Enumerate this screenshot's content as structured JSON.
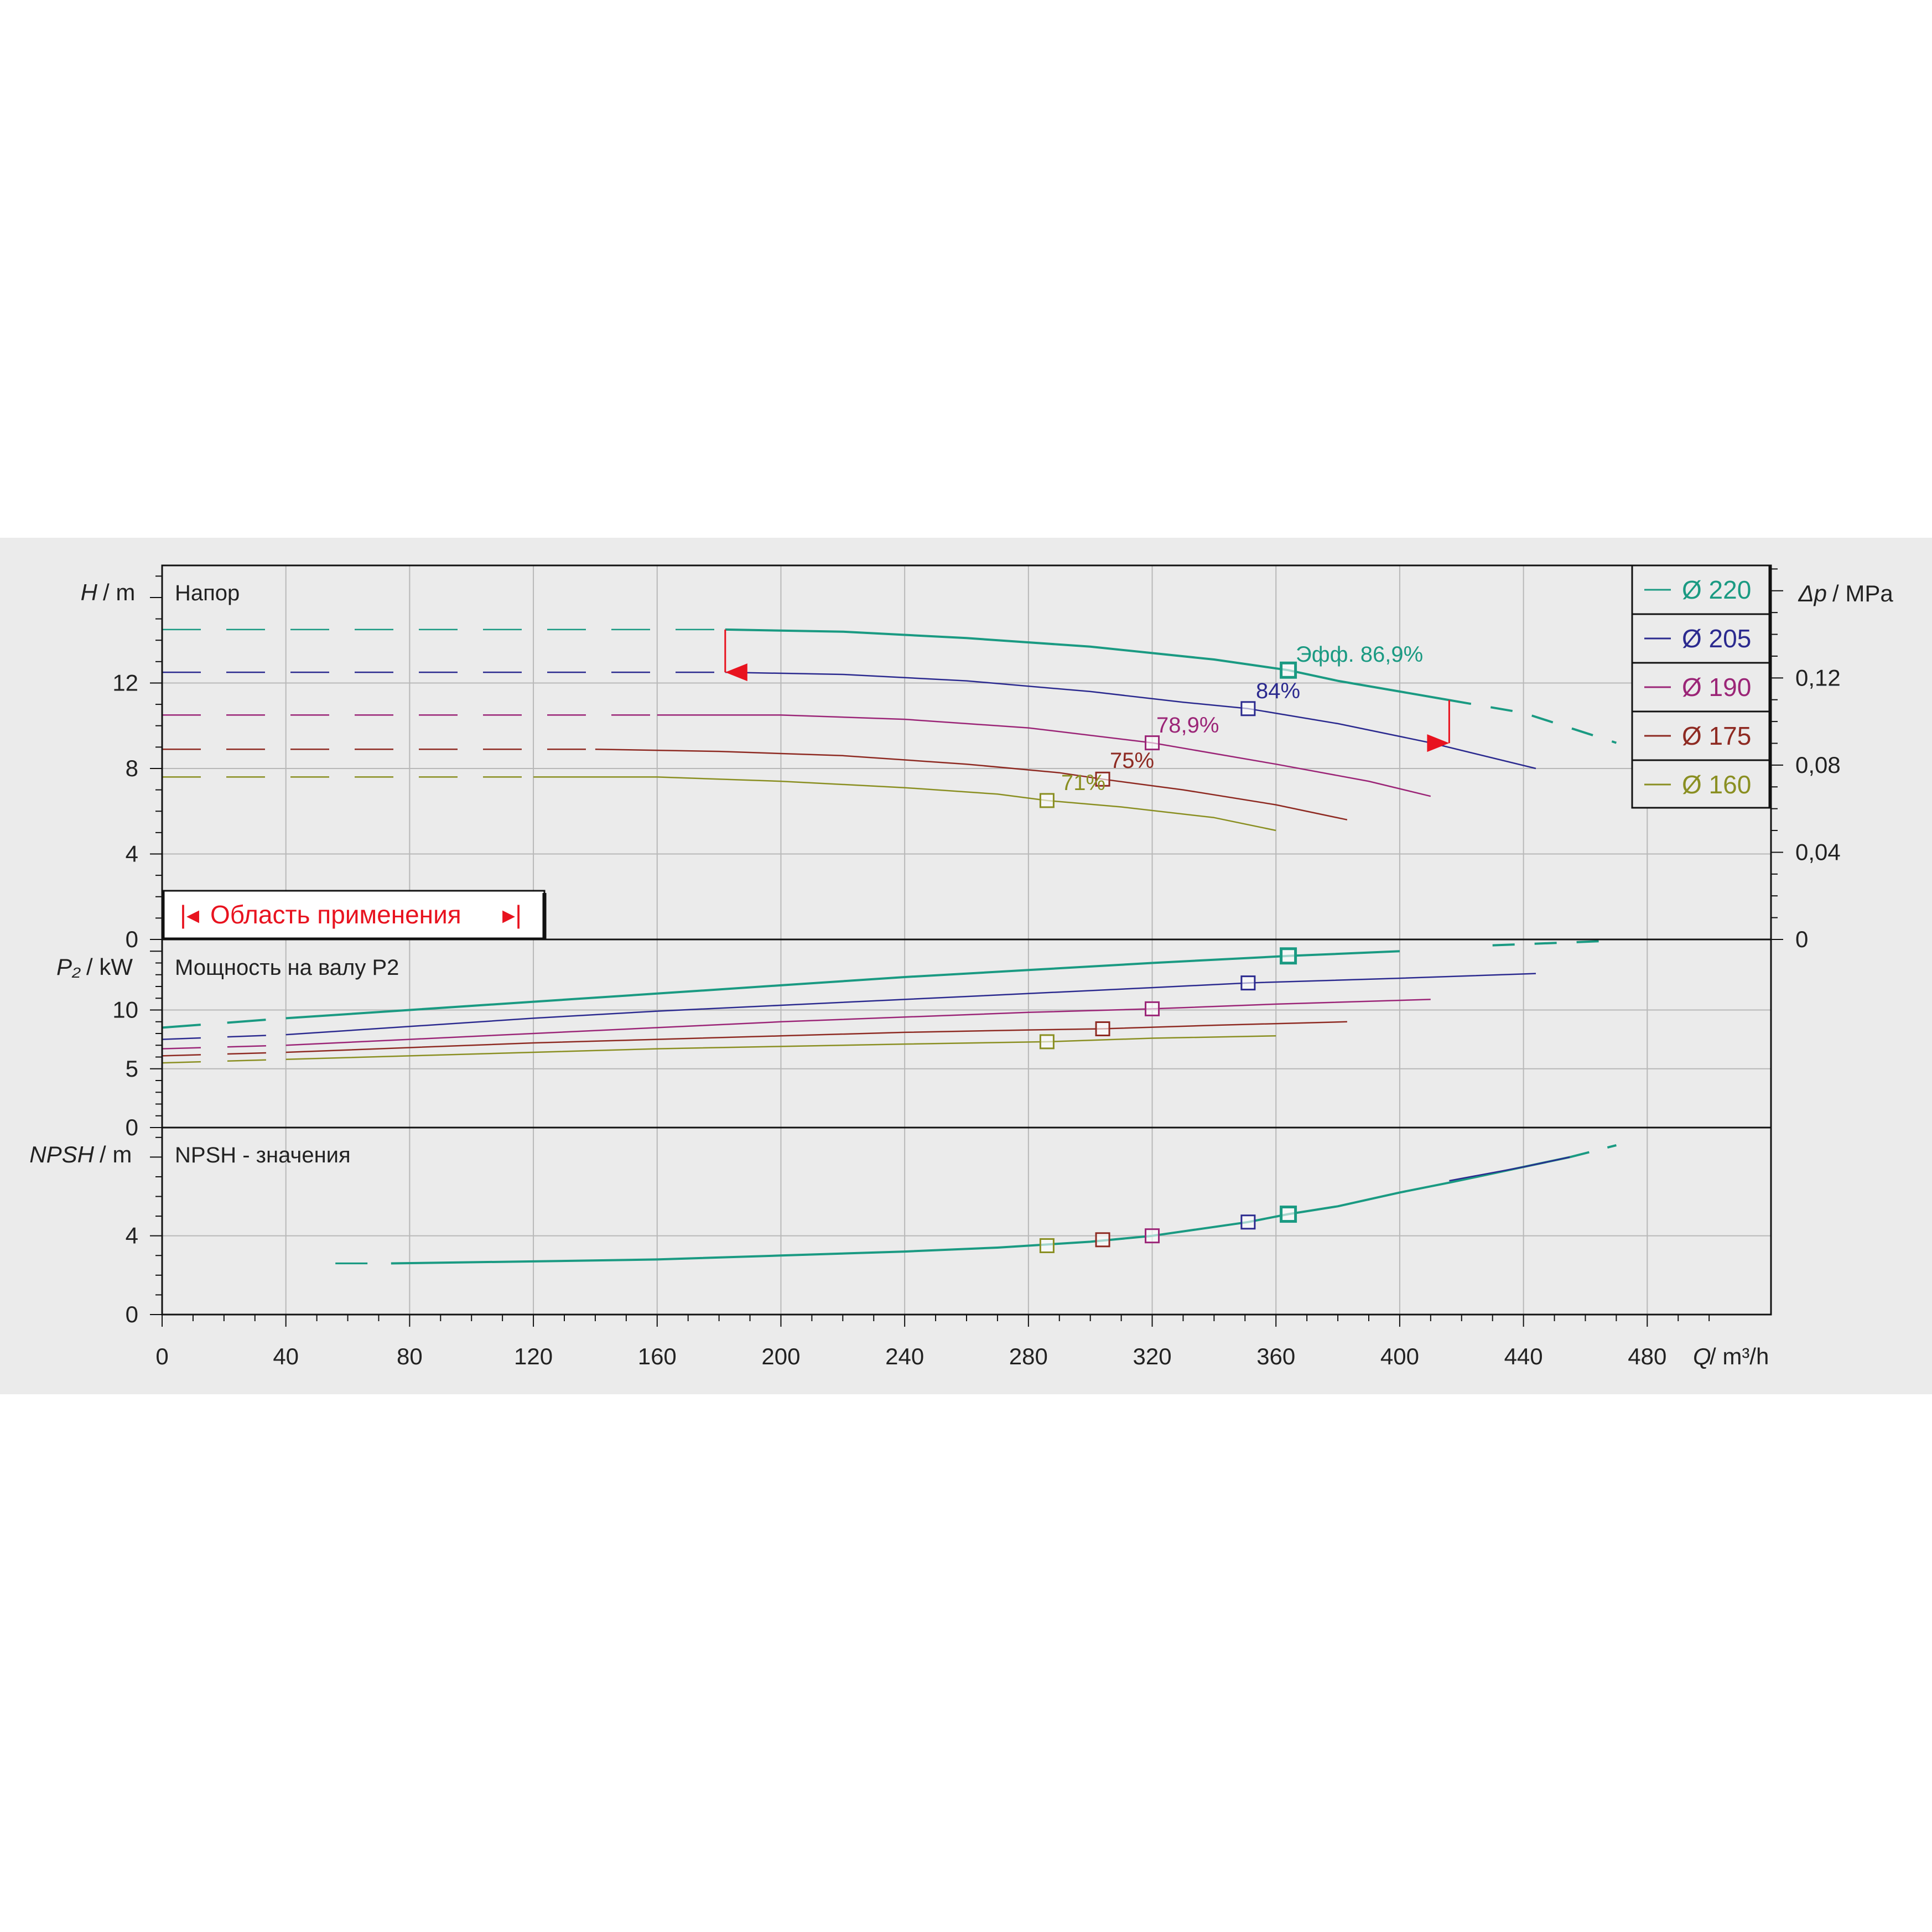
{
  "colors": {
    "d220": "#1a9a82",
    "d205": "#2b2a8f",
    "d190": "#9b2577",
    "d175": "#8e2a22",
    "d160": "#8a8f22",
    "range": "#e8131f",
    "grid": "#b8b8b8",
    "axis": "#111111",
    "band": "#ebebeb"
  },
  "panels": {
    "head": {
      "ylabel_sym": "H",
      "ylabel_unit": "/ m",
      "title": "Напор",
      "right_label_sym": "Δp",
      "right_label_unit": "/ MPa",
      "yticks": [
        "0",
        "4",
        "8",
        "12"
      ],
      "right_ticks": [
        "0",
        "0,04",
        "0,08",
        "0,12"
      ],
      "range_label": "Область применения",
      "range_marker_left": "|◂",
      "range_marker_right": "▸|"
    },
    "power": {
      "ylabel_sym": "P₂",
      "ylabel_unit": "/ kW",
      "title": "Мощность на валу P2",
      "yticks": [
        "0",
        "5",
        "10"
      ]
    },
    "npsh": {
      "ylabel_sym": "NPSH",
      "ylabel_unit": "/ m",
      "title": "NPSH - значения",
      "yticks": [
        "0",
        "4"
      ]
    }
  },
  "xaxis": {
    "label_sym": "Q",
    "label_unit": "/ m³/h",
    "ticks": [
      "0",
      "40",
      "80",
      "120",
      "160",
      "200",
      "240",
      "280",
      "320",
      "360",
      "400",
      "440",
      "480"
    ]
  },
  "legend": [
    {
      "label": "Ø 220",
      "color": "#1a9a82"
    },
    {
      "label": "Ø 205",
      "color": "#2b2a8f"
    },
    {
      "label": "Ø 190",
      "color": "#9b2577"
    },
    {
      "label": "Ø 175",
      "color": "#8e2a22"
    },
    {
      "label": "Ø 160",
      "color": "#8a8f22"
    }
  ],
  "annotations": {
    "eff220": "Эфф.   86,9%",
    "eff205": "84%",
    "eff190": "78,9%",
    "eff175": "75%",
    "eff160": "71%"
  },
  "chart_data": {
    "type": "line",
    "x_label": "Q / m³/h",
    "xlim": [
      0,
      520
    ],
    "head": {
      "ylabel": "H / m",
      "ylim": [
        0,
        17.5
      ],
      "right_ylabel": "Δp / MPa",
      "right_ylim": [
        0,
        0.1715
      ],
      "range_limits_q": [
        182,
        416
      ],
      "series": [
        {
          "name": "Ø 220",
          "color": "#1a9a82",
          "width": 4,
          "points": [
            [
              182,
              14.5
            ],
            [
              220,
              14.4
            ],
            [
              260,
              14.1
            ],
            [
              300,
              13.7
            ],
            [
              340,
              13.1
            ],
            [
              364,
              12.6
            ],
            [
              380,
              12.1
            ],
            [
              400,
              11.6
            ],
            [
              416,
              11.2
            ],
            [
              440,
              10.6
            ],
            [
              470,
              9.2
            ]
          ],
          "dash_until": 182,
          "dash_from": 416,
          "bep": [
            364,
            12.6
          ],
          "label_key": "eff220"
        },
        {
          "name": "Ø 205",
          "color": "#2b2a8f",
          "width": 2.5,
          "points": [
            [
              182,
              12.5
            ],
            [
              220,
              12.4
            ],
            [
              260,
              12.1
            ],
            [
              300,
              11.6
            ],
            [
              330,
              11.1
            ],
            [
              351,
              10.8
            ],
            [
              380,
              10.1
            ],
            [
              410,
              9.2
            ],
            [
              444,
              8.0
            ]
          ],
          "dash_until": 182,
          "bep": [
            351,
            10.8
          ],
          "label_key": "eff205"
        },
        {
          "name": "Ø 190",
          "color": "#9b2577",
          "width": 2.5,
          "points": [
            [
              160,
              10.5
            ],
            [
              200,
              10.5
            ],
            [
              240,
              10.3
            ],
            [
              280,
              9.9
            ],
            [
              320,
              9.2
            ],
            [
              360,
              8.2
            ],
            [
              390,
              7.4
            ],
            [
              410,
              6.7
            ]
          ],
          "dash_until": 160,
          "bep": [
            320,
            9.2
          ],
          "label_key": "eff190"
        },
        {
          "name": "Ø 175",
          "color": "#8e2a22",
          "width": 2.5,
          "points": [
            [
              140,
              8.9
            ],
            [
              180,
              8.8
            ],
            [
              220,
              8.6
            ],
            [
              260,
              8.2
            ],
            [
              290,
              7.8
            ],
            [
              304,
              7.5
            ],
            [
              330,
              7.0
            ],
            [
              360,
              6.3
            ],
            [
              383,
              5.6
            ]
          ],
          "dash_until": 140,
          "bep": [
            304,
            7.5
          ],
          "label_key": "eff175"
        },
        {
          "name": "Ø 160",
          "color": "#8a8f22",
          "width": 2.5,
          "points": [
            [
              120,
              7.6
            ],
            [
              160,
              7.6
            ],
            [
              200,
              7.4
            ],
            [
              240,
              7.1
            ],
            [
              270,
              6.8
            ],
            [
              286,
              6.5
            ],
            [
              310,
              6.2
            ],
            [
              340,
              5.7
            ],
            [
              360,
              5.1
            ]
          ],
          "dash_until": 120,
          "bep": [
            286,
            6.5
          ],
          "label_key": "eff160"
        }
      ]
    },
    "power": {
      "ylabel": "P2 / kW",
      "ylim": [
        0,
        16
      ],
      "series": [
        {
          "name": "Ø 220",
          "color": "#1a9a82",
          "width": 4,
          "points": [
            [
              0,
              8.5
            ],
            [
              40,
              9.3
            ],
            [
              80,
              10.0
            ],
            [
              120,
              10.7
            ],
            [
              160,
              11.4
            ],
            [
              200,
              12.1
            ],
            [
              240,
              12.8
            ],
            [
              280,
              13.4
            ],
            [
              320,
              14.0
            ],
            [
              364,
              14.6
            ],
            [
              400,
              15.0
            ],
            [
              430,
              15.5
            ],
            [
              470,
              15.9
            ]
          ],
          "dash_until": 40,
          "dash_from": 416,
          "bep": [
            364,
            14.6
          ]
        },
        {
          "name": "Ø 205",
          "color": "#2b2a8f",
          "width": 2.5,
          "points": [
            [
              0,
              7.5
            ],
            [
              40,
              7.9
            ],
            [
              80,
              8.6
            ],
            [
              120,
              9.3
            ],
            [
              160,
              9.9
            ],
            [
              200,
              10.4
            ],
            [
              240,
              10.9
            ],
            [
              280,
              11.4
            ],
            [
              320,
              11.9
            ],
            [
              351,
              12.3
            ],
            [
              400,
              12.7
            ],
            [
              444,
              13.1
            ]
          ],
          "dash_until": 40,
          "bep": [
            351,
            12.3
          ]
        },
        {
          "name": "Ø 190",
          "color": "#9b2577",
          "width": 2.5,
          "points": [
            [
              0,
              6.7
            ],
            [
              40,
              7.0
            ],
            [
              80,
              7.5
            ],
            [
              120,
              8.0
            ],
            [
              160,
              8.5
            ],
            [
              200,
              9.0
            ],
            [
              240,
              9.4
            ],
            [
              280,
              9.8
            ],
            [
              320,
              10.1
            ],
            [
              360,
              10.5
            ],
            [
              410,
              10.9
            ]
          ],
          "dash_until": 40,
          "bep": [
            320,
            10.1
          ]
        },
        {
          "name": "Ø 175",
          "color": "#8e2a22",
          "width": 2.5,
          "points": [
            [
              0,
              6.1
            ],
            [
              40,
              6.4
            ],
            [
              80,
              6.8
            ],
            [
              120,
              7.2
            ],
            [
              160,
              7.5
            ],
            [
              200,
              7.8
            ],
            [
              240,
              8.1
            ],
            [
              280,
              8.3
            ],
            [
              304,
              8.4
            ],
            [
              340,
              8.7
            ],
            [
              383,
              9.0
            ]
          ],
          "dash_until": 40,
          "bep": [
            304,
            8.4
          ]
        },
        {
          "name": "Ø 160",
          "color": "#8a8f22",
          "width": 2.5,
          "points": [
            [
              0,
              5.5
            ],
            [
              40,
              5.8
            ],
            [
              80,
              6.1
            ],
            [
              120,
              6.4
            ],
            [
              160,
              6.7
            ],
            [
              200,
              6.9
            ],
            [
              240,
              7.1
            ],
            [
              286,
              7.3
            ],
            [
              320,
              7.6
            ],
            [
              360,
              7.8
            ]
          ],
          "dash_until": 40,
          "bep": [
            286,
            7.3
          ]
        }
      ]
    },
    "npsh": {
      "ylabel": "NPSH / m",
      "ylim": [
        0,
        9.5
      ],
      "series": [
        {
          "name": "Ø 220",
          "color": "#1a9a82",
          "width": 4,
          "points": [
            [
              56,
              2.6
            ],
            [
              74,
              2.6
            ],
            [
              120,
              2.7
            ],
            [
              160,
              2.8
            ],
            [
              200,
              3.0
            ],
            [
              240,
              3.2
            ],
            [
              270,
              3.4
            ],
            [
              300,
              3.7
            ],
            [
              320,
              4.0
            ],
            [
              351,
              4.7
            ],
            [
              364,
              5.1
            ],
            [
              380,
              5.5
            ],
            [
              400,
              6.2
            ],
            [
              416,
              6.7
            ],
            [
              440,
              7.5
            ],
            [
              455,
              8.0
            ],
            [
              470,
              8.6
            ]
          ],
          "dash_until": 74,
          "dash_from": 455
        },
        {
          "name": "Ø 205",
          "color": "#2b2a8f",
          "width": 2.5,
          "points": [
            [
              416,
              6.8
            ],
            [
              440,
              7.5
            ],
            [
              455,
              8.0
            ]
          ]
        }
      ],
      "markers": [
        {
          "q": 286,
          "npsh": 3.5,
          "color": "#8a8f22"
        },
        {
          "q": 304,
          "npsh": 3.8,
          "color": "#8e2a22"
        },
        {
          "q": 320,
          "npsh": 4.0,
          "color": "#9b2577"
        },
        {
          "q": 351,
          "npsh": 4.7,
          "color": "#2b2a8f"
        },
        {
          "q": 364,
          "npsh": 5.1,
          "color": "#1a9a82"
        }
      ]
    }
  }
}
